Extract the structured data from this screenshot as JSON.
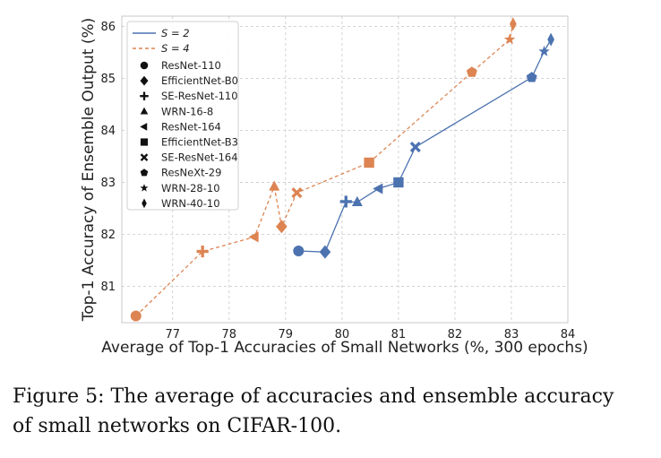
{
  "chart_data": {
    "type": "line",
    "xlabel": "Average of Top-1 Accuracies of Small Networks (%, 300 epochs)",
    "ylabel": "Top-1 Accuracy of Ensemble Output (%)",
    "xlim": [
      76.1,
      84.0
    ],
    "ylim": [
      80.3,
      86.2
    ],
    "xticks": [
      77,
      78,
      79,
      80,
      81,
      82,
      83,
      84
    ],
    "yticks": [
      81,
      82,
      83,
      84,
      85,
      86
    ],
    "grid": true,
    "legend_position": "top-left",
    "models": [
      "ResNet-110",
      "EfficientNet-B0",
      "SE-ResNet-110",
      "WRN-16-8",
      "ResNet-164",
      "EfficientNet-B3",
      "SE-ResNet-164",
      "ResNeXt-29",
      "WRN-28-10",
      "WRN-40-10"
    ],
    "series": [
      {
        "name": "S = 2",
        "color": "#4c72b0",
        "linestyle": "solid",
        "points": [
          {
            "model": "ResNet-110",
            "x": 79.23,
            "y": 81.68
          },
          {
            "model": "EfficientNet-B0",
            "x": 79.7,
            "y": 81.66
          },
          {
            "model": "SE-ResNet-110",
            "x": 80.07,
            "y": 82.63
          },
          {
            "model": "WRN-16-8",
            "x": 80.27,
            "y": 82.62
          },
          {
            "model": "ResNet-164",
            "x": 80.65,
            "y": 82.88
          },
          {
            "model": "EfficientNet-B3",
            "x": 81.0,
            "y": 83.0
          },
          {
            "model": "SE-ResNet-164",
            "x": 81.3,
            "y": 83.68
          },
          {
            "model": "ResNeXt-29",
            "x": 83.36,
            "y": 85.02
          },
          {
            "model": "WRN-28-10",
            "x": 83.58,
            "y": 85.52
          },
          {
            "model": "WRN-40-10",
            "x": 83.7,
            "y": 85.75
          }
        ]
      },
      {
        "name": "S = 4",
        "color": "#dd8452",
        "linestyle": "dashed",
        "points": [
          {
            "model": "ResNet-110",
            "x": 76.35,
            "y": 80.43
          },
          {
            "model": "SE-ResNet-110",
            "x": 77.53,
            "y": 81.67
          },
          {
            "model": "ResNet-164",
            "x": 78.45,
            "y": 81.95
          },
          {
            "model": "WRN-16-8",
            "x": 78.8,
            "y": 82.92
          },
          {
            "model": "EfficientNet-B0",
            "x": 78.93,
            "y": 82.15
          },
          {
            "model": "SE-ResNet-164",
            "x": 79.2,
            "y": 82.8
          },
          {
            "model": "EfficientNet-B3",
            "x": 80.48,
            "y": 83.38
          },
          {
            "model": "ResNeXt-29",
            "x": 82.3,
            "y": 85.12
          },
          {
            "model": "WRN-28-10",
            "x": 82.97,
            "y": 85.75
          },
          {
            "model": "WRN-40-10",
            "x": 83.03,
            "y": 86.05
          }
        ]
      }
    ]
  },
  "legend": {
    "s2_label": "S = 2",
    "s4_label": "S = 4",
    "markers": [
      {
        "label": "ResNet-110",
        "icon": "circle"
      },
      {
        "label": "EfficientNet-B0",
        "icon": "diamond"
      },
      {
        "label": "SE-ResNet-110",
        "icon": "plus"
      },
      {
        "label": "WRN-16-8",
        "icon": "triangle-up"
      },
      {
        "label": "ResNet-164",
        "icon": "triangle-left"
      },
      {
        "label": "EfficientNet-B3",
        "icon": "square"
      },
      {
        "label": "SE-ResNet-164",
        "icon": "x-cross"
      },
      {
        "label": "ResNeXt-29",
        "icon": "pentagon"
      },
      {
        "label": "WRN-28-10",
        "icon": "star"
      },
      {
        "label": "WRN-40-10",
        "icon": "thin-diamond"
      }
    ]
  },
  "caption": {
    "line1": "Figure 5: The average of accuracies and ensemble accuracy",
    "line2": "of small networks on CIFAR-100."
  }
}
